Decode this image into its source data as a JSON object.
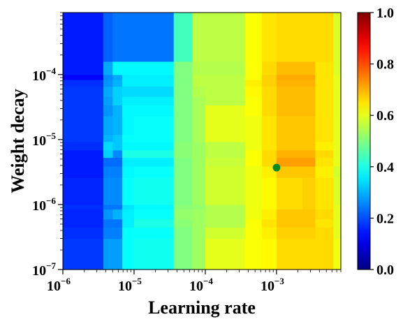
{
  "chart_data": {
    "type": "heatmap",
    "xlabel": "Learning rate",
    "ylabel": "Weight decay",
    "x_scale": "log",
    "y_scale": "log",
    "xlim": [
      1e-06,
      0.008
    ],
    "ylim": [
      1e-07,
      0.0009
    ],
    "x_ticks": [
      {
        "value": 1e-06,
        "base": "10",
        "exp": "−6"
      },
      {
        "value": 1e-05,
        "base": "10",
        "exp": "−5"
      },
      {
        "value": 0.0001,
        "base": "10",
        "exp": "−4"
      },
      {
        "value": 0.001,
        "base": "10",
        "exp": "−3"
      }
    ],
    "y_ticks": [
      {
        "value": 1e-07,
        "base": "10",
        "exp": "−7"
      },
      {
        "value": 1e-06,
        "base": "10",
        "exp": "−6"
      },
      {
        "value": 1e-05,
        "base": "10",
        "exp": "−5"
      },
      {
        "value": 0.0001,
        "base": "10",
        "exp": "−4"
      }
    ],
    "x_edges": [
      1e-06,
      3.7e-06,
      5e-06,
      6.8e-06,
      1e-05,
      3.6e-05,
      6.6e-05,
      0.0001,
      0.00036,
      0.00062,
      0.001,
      0.0023,
      0.0035,
      0.0063,
      0.008
    ],
    "y_edges": [
      1e-07,
      3e-07,
      4.5e-07,
      6e-07,
      8.5e-07,
      1e-06,
      2.6e-06,
      3.9e-06,
      5.3e-06,
      6.9e-06,
      9.3e-06,
      1.2e-05,
      2.3e-05,
      3.4e-05,
      4.6e-05,
      6.6e-05,
      8.4e-05,
      0.0001,
      0.00016,
      0.0009
    ],
    "values": [
      [
        0.18,
        0.28,
        0.28,
        0.38,
        0.39,
        0.5,
        0.53,
        0.6,
        0.62,
        0.63,
        0.66,
        0.66,
        0.66,
        0.61
      ],
      [
        0.17,
        0.25,
        0.25,
        0.38,
        0.38,
        0.5,
        0.53,
        0.58,
        0.62,
        0.64,
        0.67,
        0.67,
        0.66,
        0.6
      ],
      [
        0.16,
        0.24,
        0.24,
        0.36,
        0.4,
        0.51,
        0.53,
        0.55,
        0.62,
        0.65,
        0.68,
        0.68,
        0.65,
        0.6
      ],
      [
        0.16,
        0.27,
        0.3,
        0.36,
        0.38,
        0.52,
        0.53,
        0.55,
        0.61,
        0.64,
        0.68,
        0.68,
        0.66,
        0.6
      ],
      [
        0.17,
        0.24,
        0.24,
        0.35,
        0.37,
        0.51,
        0.52,
        0.55,
        0.61,
        0.63,
        0.66,
        0.67,
        0.65,
        0.6
      ],
      [
        0.16,
        0.26,
        0.26,
        0.38,
        0.39,
        0.5,
        0.53,
        0.58,
        0.61,
        0.63,
        0.66,
        0.67,
        0.65,
        0.59
      ],
      [
        0.15,
        0.25,
        0.25,
        0.37,
        0.38,
        0.5,
        0.53,
        0.58,
        0.61,
        0.64,
        0.68,
        0.68,
        0.64,
        0.58
      ],
      [
        0.15,
        0.23,
        0.23,
        0.36,
        0.36,
        0.5,
        0.53,
        0.57,
        0.62,
        0.66,
        0.72,
        0.72,
        0.65,
        0.6
      ],
      [
        0.15,
        0.33,
        0.26,
        0.4,
        0.4,
        0.51,
        0.53,
        0.56,
        0.62,
        0.66,
        0.7,
        0.7,
        0.66,
        0.6
      ],
      [
        0.17,
        0.34,
        0.32,
        0.37,
        0.37,
        0.51,
        0.53,
        0.56,
        0.61,
        0.65,
        0.68,
        0.68,
        0.64,
        0.6
      ],
      [
        0.18,
        0.3,
        0.32,
        0.38,
        0.38,
        0.5,
        0.54,
        0.6,
        0.61,
        0.65,
        0.68,
        0.68,
        0.65,
        0.6
      ],
      [
        0.18,
        0.29,
        0.3,
        0.37,
        0.38,
        0.5,
        0.54,
        0.6,
        0.61,
        0.65,
        0.68,
        0.68,
        0.65,
        0.6
      ],
      [
        0.18,
        0.27,
        0.3,
        0.37,
        0.37,
        0.5,
        0.54,
        0.6,
        0.62,
        0.66,
        0.69,
        0.69,
        0.65,
        0.6
      ],
      [
        0.18,
        0.28,
        0.33,
        0.36,
        0.36,
        0.5,
        0.54,
        0.56,
        0.62,
        0.66,
        0.69,
        0.69,
        0.65,
        0.6
      ],
      [
        0.18,
        0.29,
        0.33,
        0.34,
        0.34,
        0.5,
        0.55,
        0.56,
        0.63,
        0.66,
        0.69,
        0.69,
        0.65,
        0.6
      ],
      [
        0.17,
        0.27,
        0.3,
        0.36,
        0.36,
        0.5,
        0.56,
        0.56,
        0.64,
        0.67,
        0.7,
        0.7,
        0.65,
        0.6
      ],
      [
        0.12,
        0.26,
        0.29,
        0.36,
        0.36,
        0.5,
        0.56,
        0.56,
        0.62,
        0.67,
        0.71,
        0.71,
        0.65,
        0.6
      ],
      [
        0.15,
        0.29,
        0.37,
        0.37,
        0.37,
        0.5,
        0.55,
        0.55,
        0.62,
        0.66,
        0.69,
        0.69,
        0.65,
        0.59
      ],
      [
        0.15,
        0.22,
        0.24,
        0.24,
        0.24,
        0.44,
        0.56,
        0.56,
        0.62,
        0.65,
        0.66,
        0.66,
        0.66,
        0.59
      ]
    ],
    "colorbar": {
      "min": 0.0,
      "max": 1.0,
      "colormap": "jet",
      "ticks": [
        "0.0",
        "0.2",
        "0.4",
        "0.6",
        "0.8",
        "1.0"
      ]
    },
    "marker": {
      "x": 0.001,
      "y": 3.7e-06,
      "color": "#0a8a1f"
    },
    "grid": false,
    "legend": "none"
  }
}
